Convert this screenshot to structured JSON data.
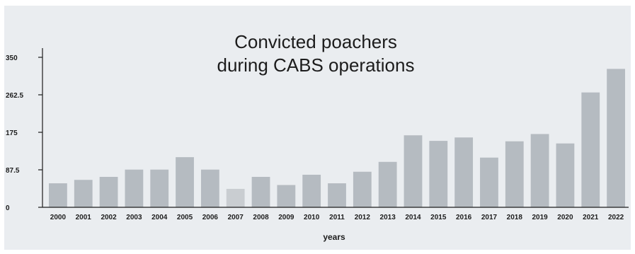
{
  "chart_data": {
    "type": "bar",
    "title_lines": [
      "Convicted poachers",
      "during CABS operations"
    ],
    "xlabel": "years",
    "ylabel": "",
    "ylim": [
      0,
      350
    ],
    "yticks": [
      "0",
      "87.5",
      "175",
      "262.5",
      "350"
    ],
    "categories": [
      "2000",
      "2001",
      "2002",
      "2003",
      "2004",
      "2005",
      "2006",
      "2007",
      "2008",
      "2009",
      "2010",
      "2011",
      "2012",
      "2013",
      "2014",
      "2015",
      "2016",
      "2017",
      "2018",
      "2019",
      "2020",
      "2021",
      "2022"
    ],
    "values": [
      56,
      64,
      71,
      88,
      88,
      117,
      88,
      43,
      71,
      52,
      76,
      56,
      83,
      106,
      168,
      155,
      163,
      116,
      154,
      171,
      149,
      268,
      323
    ],
    "bar_color": "#b5bbc1",
    "highlight_bar_color": "#c9cdd1",
    "highlight_category": "2007",
    "grid": false
  }
}
